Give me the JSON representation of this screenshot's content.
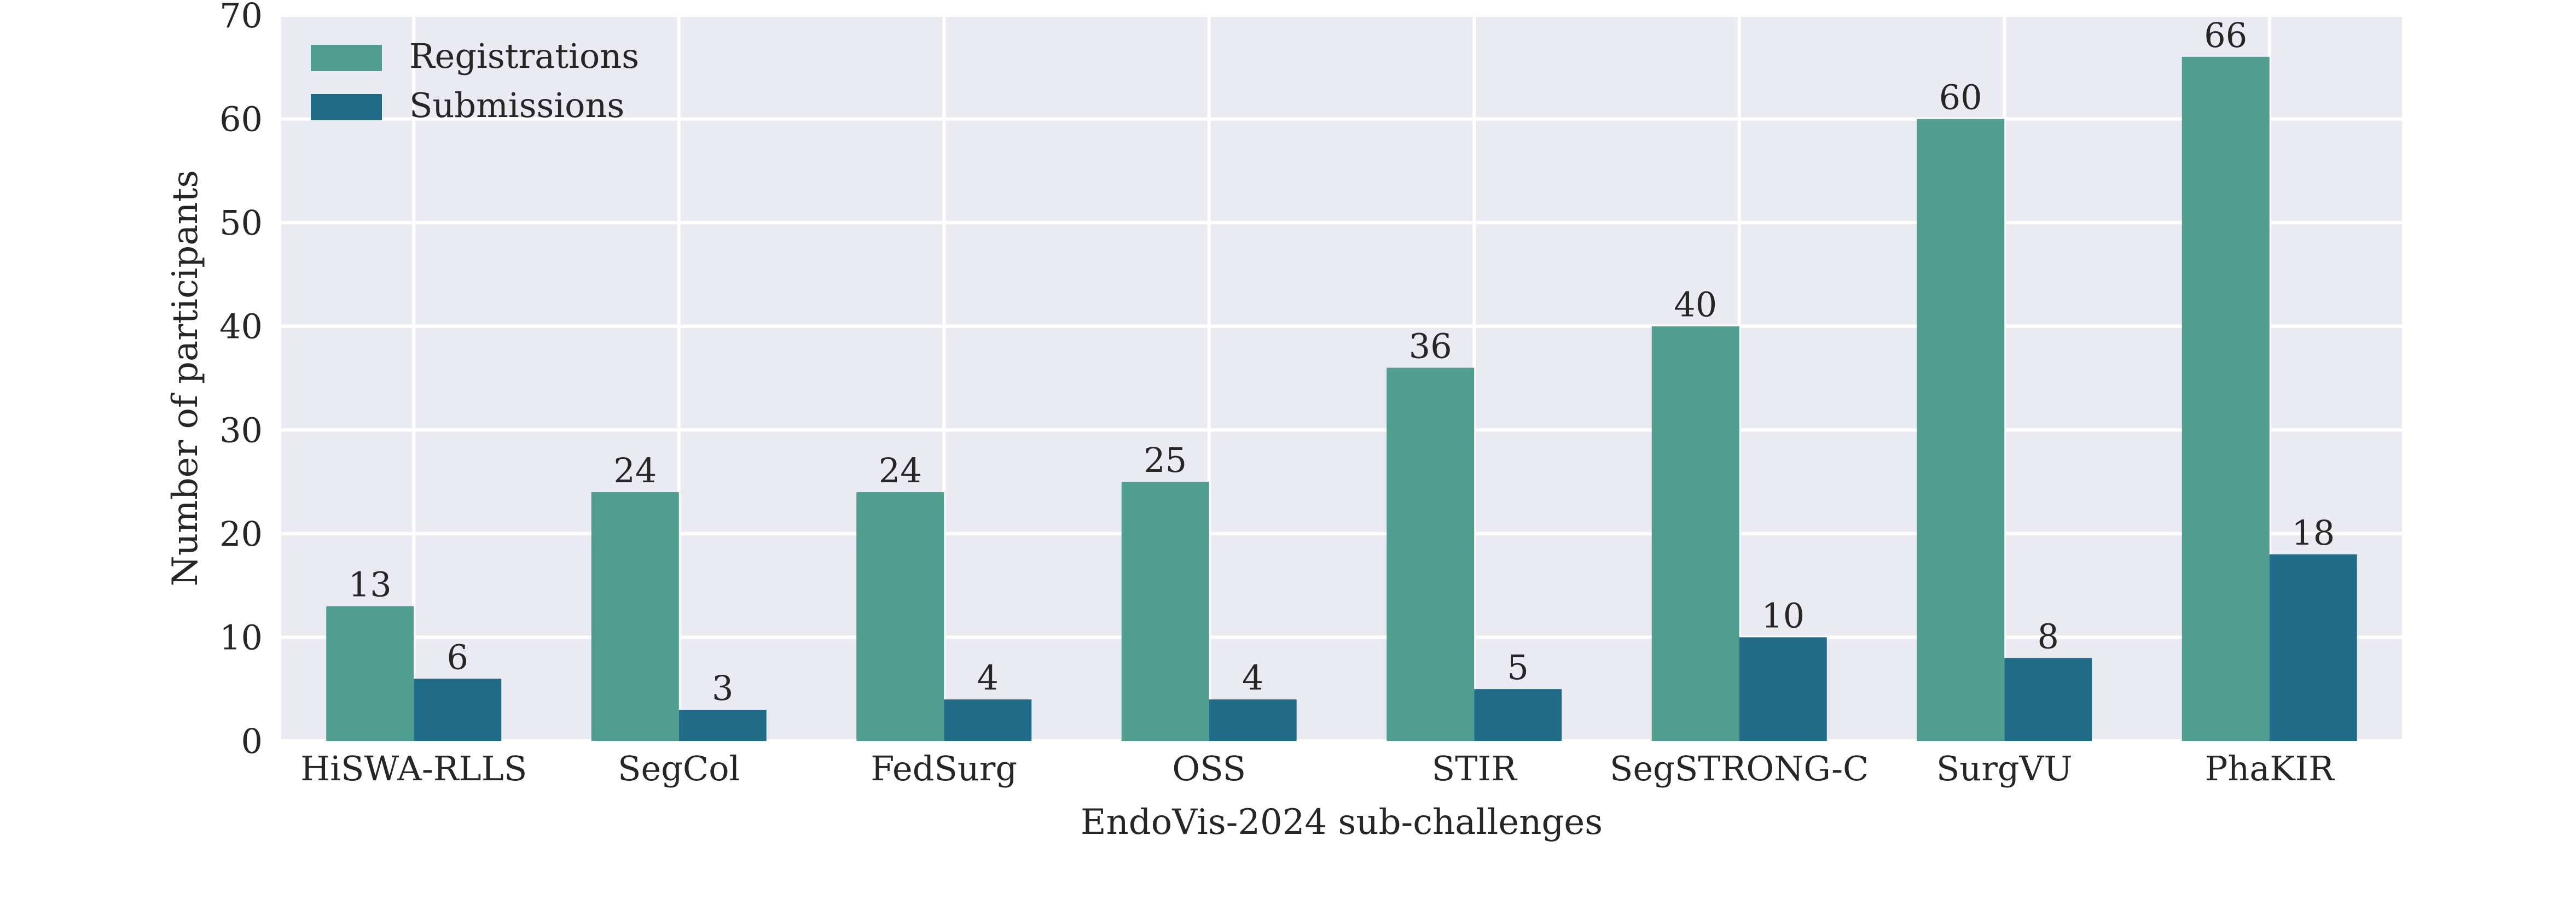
{
  "chart_data": {
    "type": "bar",
    "title": "",
    "xlabel": "EndoVis-2024 sub-challenges",
    "ylabel": "Number of participants",
    "categories": [
      "HiSWA-RLLS",
      "SegCol",
      "FedSurg",
      "OSS",
      "STIR",
      "SegSTRONG-C",
      "SurgVU",
      "PhaKIR"
    ],
    "series": [
      {
        "name": "Registrations",
        "values": [
          13,
          24,
          24,
          25,
          36,
          40,
          60,
          66
        ],
        "color": "#4f9e8f"
      },
      {
        "name": "Submissions",
        "values": [
          6,
          3,
          4,
          4,
          5,
          10,
          8,
          18
        ],
        "color": "#1f6b88"
      }
    ],
    "ylim": [
      0,
      70
    ],
    "yticks": [
      0,
      10,
      20,
      30,
      40,
      50,
      60,
      70
    ],
    "grid": true,
    "legend_position": "top-left",
    "background_color": "#eaeaf2",
    "grid_color": "#ffffff"
  }
}
